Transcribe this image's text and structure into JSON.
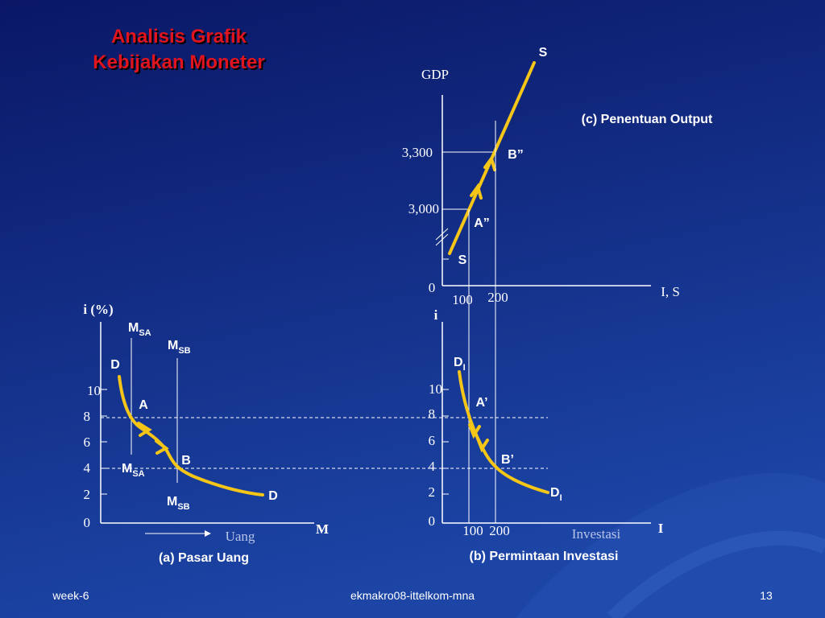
{
  "title": [
    "Analisis Grafik",
    "Kebijakan Moneter"
  ],
  "panel_c": {
    "curve_top": "S",
    "y_label": "GDP",
    "caption": "(c) Penentuan Output",
    "y_ticks": [
      "3,300",
      "3,000"
    ],
    "points": [
      "B”",
      "A”"
    ],
    "curve_bottom": "S",
    "origin": "0",
    "x_ticks": [
      "100",
      "200"
    ],
    "x_label": "I, S"
  },
  "panel_b": {
    "y_label": "i",
    "curve_top": {
      "main": "D",
      "sub": "I"
    },
    "y_ticks": [
      "10",
      "8",
      "6",
      "4",
      "2",
      "0"
    ],
    "points": [
      "A’",
      "B’"
    ],
    "curve_bottom": {
      "main": "D",
      "sub": "I"
    },
    "x_ticks": [
      "100",
      "200"
    ],
    "x_name": "Investasi",
    "x_label": "I",
    "caption": "(b) Permintaan Investasi"
  },
  "panel_a": {
    "y_label": "i (%)",
    "supply_top": [
      {
        "main": "M",
        "sub": "SA"
      },
      {
        "main": "M",
        "sub": "SB"
      }
    ],
    "curve_top": "D",
    "y_ticks": [
      "10",
      "8",
      "6",
      "4",
      "2",
      "0"
    ],
    "points": [
      "A",
      "B"
    ],
    "supply_bottom": [
      {
        "main": "M",
        "sub": "SA"
      },
      {
        "main": "M",
        "sub": "SB"
      }
    ],
    "curve_bottom": "D",
    "x_name": "Uang",
    "x_label": "M",
    "caption": "(a) Pasar Uang"
  },
  "footer": {
    "left": "week-6",
    "center": "ekmakro08-ittelkom-mna",
    "right": "13"
  }
}
